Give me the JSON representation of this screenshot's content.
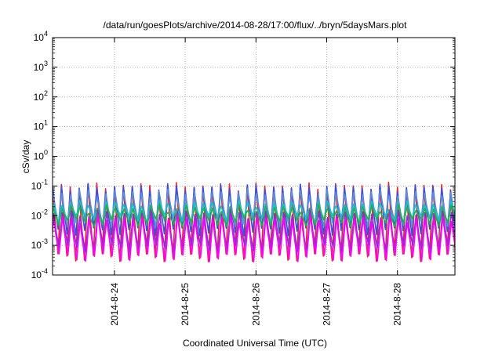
{
  "chart_data": {
    "type": "line",
    "title": "/data/run/goesPlots/archive/2014-08-28/17:00/flux/../bryn/5daysMars.plot",
    "xlabel": "Coordinated Universal Time (UTC)",
    "ylabel": "cSv/day",
    "yscale": "log",
    "ylim": [
      0.0001,
      10000
    ],
    "xlim": [
      "2014-08-23T03:00",
      "2014-08-28T19:30"
    ],
    "grid": true,
    "x_ticks": [
      {
        "label": "2014-8-24",
        "date": "2014-08-24T00:00"
      },
      {
        "label": "2014-8-25",
        "date": "2014-08-25T00:00"
      },
      {
        "label": "2014-8-26",
        "date": "2014-08-26T00:00"
      },
      {
        "label": "2014-8-27",
        "date": "2014-08-27T00:00"
      },
      {
        "label": "2014-8-28",
        "date": "2014-08-28T00:00"
      }
    ],
    "y_ticks": [
      {
        "base": "10",
        "exp": "-4",
        "value": 0.0001
      },
      {
        "base": "10",
        "exp": "-3",
        "value": 0.001
      },
      {
        "base": "10",
        "exp": "-2",
        "value": 0.01
      },
      {
        "base": "10",
        "exp": "-1",
        "value": 0.1
      },
      {
        "base": "10",
        "exp": "0",
        "value": 1
      },
      {
        "base": "10",
        "exp": "1",
        "value": 10
      },
      {
        "base": "10",
        "exp": "2",
        "value": 100
      },
      {
        "base": "10",
        "exp": "3",
        "value": 1000
      },
      {
        "base": "10",
        "exp": "4",
        "value": 10000
      }
    ],
    "cycle_hours": 3,
    "series": [
      {
        "color": "#e8282c",
        "peak": 0.1,
        "trough": 0.0004
      },
      {
        "color": "#3a4fe0",
        "peak": 0.09,
        "trough": 0.003
      },
      {
        "color": "#5b8fd8",
        "peak": 0.06,
        "trough": 0.006
      },
      {
        "color": "#13c4c4",
        "peak": 0.025,
        "trough": 0.008
      },
      {
        "color": "#20b24a",
        "peak": 0.018,
        "trough": 0.006
      },
      {
        "color": "#8a2fd6",
        "peak": 0.012,
        "trough": 0.0008
      },
      {
        "color": "#ff00ff",
        "peak": 0.008,
        "trough": 0.0004
      }
    ]
  }
}
